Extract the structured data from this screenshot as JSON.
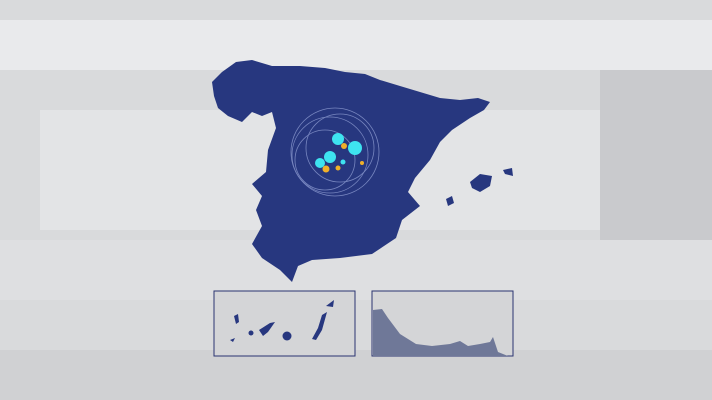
{
  "colors": {
    "land": "#27377f",
    "background": "#d9dadc",
    "marker_primary": "#3ee3f0",
    "marker_secondary": "#f0b02a",
    "inset_border": "#2a3470"
  },
  "map": {
    "region": "Spain",
    "insets": [
      "canary-islands",
      "ceuta-melilla-coast"
    ]
  }
}
